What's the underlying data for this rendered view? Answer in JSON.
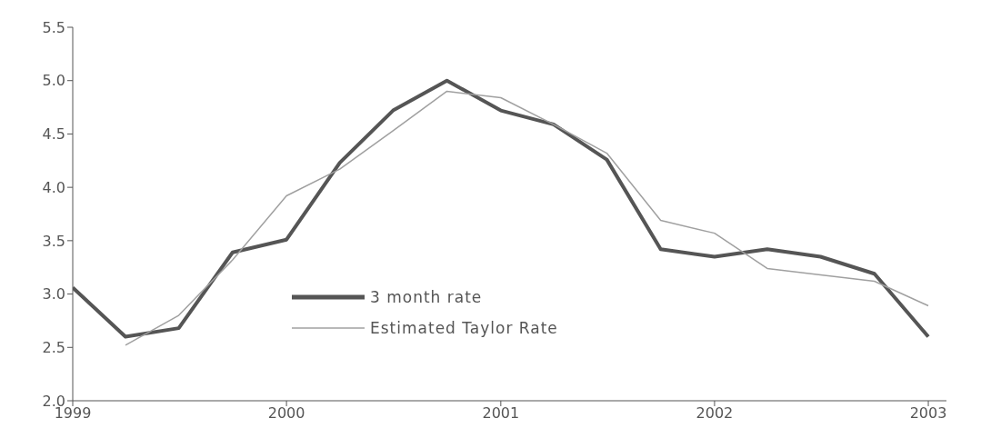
{
  "chart_data": {
    "type": "line",
    "x": [
      "1999-01",
      "1999-04",
      "1999-07",
      "1999-10",
      "2000-01",
      "2000-04",
      "2000-07",
      "2000-10",
      "2001-01",
      "2001-04",
      "2001-07",
      "2001-10",
      "2002-01",
      "2002-04",
      "2002-07",
      "2002-10",
      "2003-01"
    ],
    "series": [
      {
        "name": "3 month rate",
        "color": "#555555",
        "values": [
          3.06,
          2.6,
          2.68,
          3.39,
          3.51,
          4.23,
          4.72,
          5.0,
          4.72,
          4.59,
          4.26,
          3.42,
          3.35,
          3.42,
          3.35,
          3.19,
          2.6
        ]
      },
      {
        "name": "Estimated Taylor Rate",
        "color": "#a0a0a0",
        "values": [
          null,
          2.52,
          2.8,
          3.32,
          3.92,
          4.17,
          4.53,
          4.9,
          4.84,
          4.59,
          4.32,
          3.69,
          3.57,
          3.24,
          3.18,
          3.12,
          2.89
        ]
      }
    ],
    "xlim": [
      "1999-01",
      "2003-02"
    ],
    "xticks": [
      "1999",
      "2000",
      "2001",
      "2002",
      "2003"
    ],
    "ylim": [
      2,
      5.5
    ],
    "yticks": [
      {
        "value": 2,
        "label": "2.0"
      },
      {
        "value": 2.5,
        "label": "2.5"
      },
      {
        "value": 3,
        "label": "3.0"
      },
      {
        "value": 3.5,
        "label": "3.5"
      },
      {
        "value": 4,
        "label": "4.0"
      },
      {
        "value": 4.5,
        "label": "4.5"
      },
      {
        "value": 5,
        "label": "5.0"
      },
      {
        "value": 5.5,
        "label": "5.5"
      }
    ],
    "legend": "bottom"
  }
}
